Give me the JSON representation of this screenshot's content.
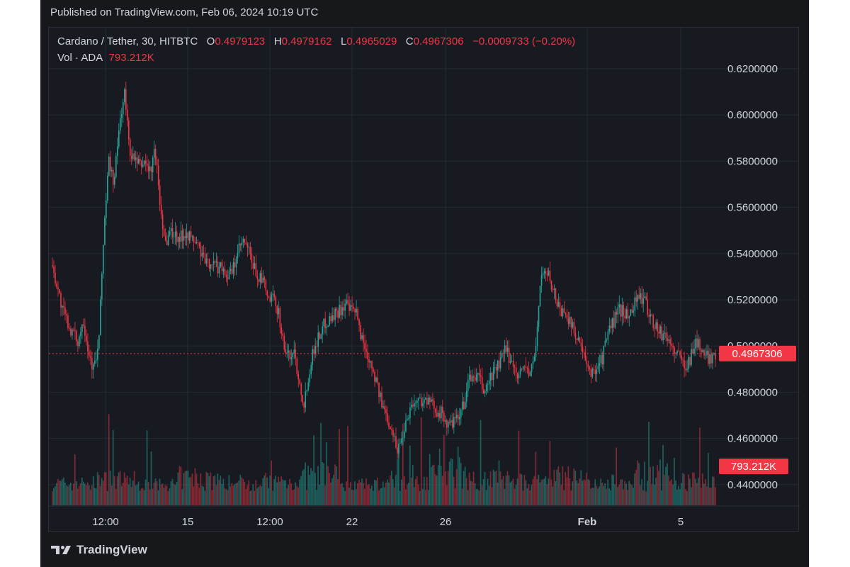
{
  "published": "Published on TradingView.com, Feb 06, 2024 10:19 UTC",
  "brand": "TradingView",
  "colors": {
    "up": "#26a69a",
    "down": "#f23645",
    "background": "#171a21",
    "grid": "#252a33",
    "text": "#d1d4dc"
  },
  "legend": {
    "symbol": "Cardano / Tether, 30, HITBTC",
    "o_label": "O",
    "o_value": "0.4979123",
    "h_label": "H",
    "h_value": "0.4979162",
    "l_label": "L",
    "l_value": "0.4965029",
    "c_label": "C",
    "c_value": "0.4967306",
    "change": "−0.0009733 (−0.20%)",
    "vol_label": "Vol · ADA",
    "vol_value": "793.212K"
  },
  "chart_data": {
    "type": "candlestick",
    "y_ticks": [
      "0.6200000",
      "0.6000000",
      "0.5800000",
      "0.5600000",
      "0.5400000",
      "0.5200000",
      "0.5000000",
      "0.4800000",
      "0.4600000",
      "0.4400000"
    ],
    "y_range": [
      0.434,
      0.63
    ],
    "x_ticks": [
      "12:00",
      "15",
      "12:00",
      "22",
      "26",
      "Feb",
      "5"
    ],
    "last_price": "0.4967306",
    "last_volume": "793.212K",
    "price_path": [
      0.535,
      0.525,
      0.515,
      0.51,
      0.505,
      0.502,
      0.512,
      0.498,
      0.49,
      0.5,
      0.55,
      0.58,
      0.57,
      0.595,
      0.61,
      0.585,
      0.58,
      0.578,
      0.58,
      0.575,
      0.585,
      0.56,
      0.545,
      0.55,
      0.548,
      0.547,
      0.55,
      0.546,
      0.545,
      0.54,
      0.535,
      0.537,
      0.534,
      0.535,
      0.53,
      0.532,
      0.54,
      0.545,
      0.542,
      0.535,
      0.53,
      0.528,
      0.52,
      0.52,
      0.515,
      0.5,
      0.495,
      0.498,
      0.485,
      0.475,
      0.49,
      0.5,
      0.505,
      0.51,
      0.512,
      0.514,
      0.516,
      0.518,
      0.515,
      0.515,
      0.505,
      0.498,
      0.493,
      0.485,
      0.475,
      0.47,
      0.465,
      0.455,
      0.46,
      0.47,
      0.475,
      0.476,
      0.477,
      0.476,
      0.474,
      0.472,
      0.47,
      0.465,
      0.467,
      0.468,
      0.475,
      0.485,
      0.487,
      0.486,
      0.48,
      0.485,
      0.49,
      0.492,
      0.498,
      0.495,
      0.49,
      0.488,
      0.492,
      0.487,
      0.498,
      0.53,
      0.532,
      0.528,
      0.52,
      0.515,
      0.515,
      0.508,
      0.505,
      0.498,
      0.49,
      0.488,
      0.492,
      0.495,
      0.505,
      0.51,
      0.515,
      0.516,
      0.512,
      0.518,
      0.522,
      0.52,
      0.515,
      0.51,
      0.506,
      0.505,
      0.502,
      0.498,
      0.495,
      0.492,
      0.494,
      0.502,
      0.5,
      0.495,
      0.495,
      0.497
    ],
    "volume_levels": [
      0.35,
      0.5,
      0.3,
      0.6,
      0.4,
      0.45,
      0.7,
      0.3,
      0.5,
      0.9,
      0.55,
      0.4,
      0.6,
      0.3,
      0.8,
      0.45
    ]
  }
}
